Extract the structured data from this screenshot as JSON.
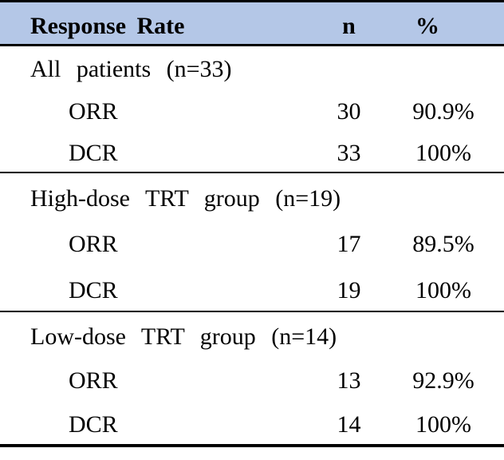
{
  "page": {
    "background_color": "#FFFFFF"
  },
  "table": {
    "style": {
      "header_bg": "#B4C7E7",
      "border_color": "#000000",
      "text_color": "#000000"
    },
    "header": {
      "label": "Response Rate",
      "n": "n",
      "pct": "%"
    },
    "sections": [
      {
        "title": "All patients (n=33)",
        "rows": [
          {
            "label": "ORR",
            "n": "30",
            "pct": "90.9%"
          },
          {
            "label": "DCR",
            "n": "33",
            "pct": "100%"
          }
        ]
      },
      {
        "title": "High-dose TRT group (n=19)",
        "rows": [
          {
            "label": "ORR",
            "n": "17",
            "pct": "89.5%"
          },
          {
            "label": "DCR",
            "n": "19",
            "pct": "100%"
          }
        ]
      },
      {
        "title": "Low-dose TRT group (n=14)",
        "rows": [
          {
            "label": "ORR",
            "n": "13",
            "pct": "92.9%"
          },
          {
            "label": "DCR",
            "n": "14",
            "pct": "100%"
          }
        ]
      }
    ]
  },
  "chart_data": {
    "type": "table",
    "title": "Response Rate",
    "columns": [
      "Response Rate",
      "n",
      "%"
    ],
    "rows": [
      [
        "All patients (n=33)",
        "",
        ""
      ],
      [
        "ORR",
        "30",
        "90.9%"
      ],
      [
        "DCR",
        "33",
        "100%"
      ],
      [
        "High-dose TRT group (n=19)",
        "",
        ""
      ],
      [
        "ORR",
        "17",
        "89.5%"
      ],
      [
        "DCR",
        "19",
        "100%"
      ],
      [
        "Low-dose TRT group (n=14)",
        "",
        ""
      ],
      [
        "ORR",
        "13",
        "92.9%"
      ],
      [
        "DCR",
        "14",
        "100%"
      ]
    ]
  }
}
